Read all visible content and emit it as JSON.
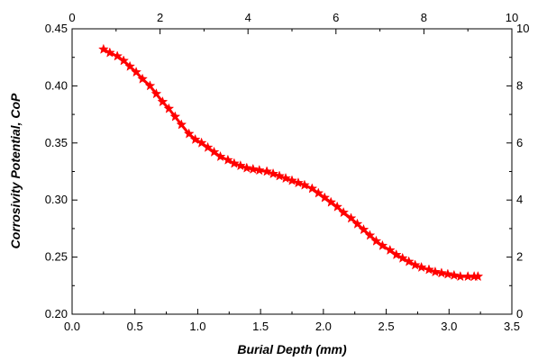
{
  "chart_data": {
    "type": "line",
    "xlabel": "Burial Depth (mm)",
    "ylabel": "Corrosivity Potential, CoP",
    "xlim": [
      0.0,
      3.5
    ],
    "ylim": [
      0.2,
      0.45
    ],
    "x_ticks": [
      "0.0",
      "0.5",
      "1.0",
      "1.5",
      "2.0",
      "2.5",
      "3.0",
      "3.5"
    ],
    "y_ticks": [
      "0.20",
      "0.25",
      "0.30",
      "0.35",
      "0.40",
      "0.45"
    ],
    "top_axis": {
      "range": [
        0,
        10
      ],
      "ticks": [
        "0",
        "2",
        "4",
        "6",
        "8",
        "10"
      ]
    },
    "right_axis": {
      "range": [
        0,
        10
      ],
      "ticks": [
        "0",
        "2",
        "4",
        "6",
        "8",
        "10"
      ]
    },
    "grid": false,
    "series": [
      {
        "color": "#ff0000",
        "marker": "star",
        "x": [
          0.25,
          0.3,
          0.36,
          0.41,
          0.46,
          0.51,
          0.56,
          0.62,
          0.67,
          0.72,
          0.77,
          0.82,
          0.87,
          0.93,
          0.98,
          1.03,
          1.08,
          1.13,
          1.18,
          1.24,
          1.29,
          1.34,
          1.39,
          1.44,
          1.49,
          1.55,
          1.6,
          1.65,
          1.7,
          1.75,
          1.8,
          1.85,
          1.91,
          1.96,
          2.01,
          2.06,
          2.11,
          2.16,
          2.22,
          2.27,
          2.32,
          2.37,
          2.42,
          2.47,
          2.53,
          2.58,
          2.63,
          2.68,
          2.73,
          2.78,
          2.84,
          2.89,
          2.94,
          2.99,
          3.04,
          3.09,
          3.15,
          3.2,
          3.23
        ],
        "y": [
          0.432,
          0.429,
          0.426,
          0.422,
          0.417,
          0.412,
          0.406,
          0.4,
          0.393,
          0.386,
          0.38,
          0.373,
          0.366,
          0.358,
          0.353,
          0.35,
          0.346,
          0.342,
          0.338,
          0.335,
          0.332,
          0.33,
          0.328,
          0.327,
          0.326,
          0.325,
          0.323,
          0.321,
          0.319,
          0.317,
          0.315,
          0.313,
          0.31,
          0.306,
          0.302,
          0.298,
          0.294,
          0.289,
          0.284,
          0.279,
          0.274,
          0.269,
          0.264,
          0.26,
          0.256,
          0.252,
          0.249,
          0.246,
          0.243,
          0.241,
          0.239,
          0.237,
          0.236,
          0.235,
          0.234,
          0.233,
          0.233,
          0.233,
          0.233
        ]
      }
    ]
  }
}
